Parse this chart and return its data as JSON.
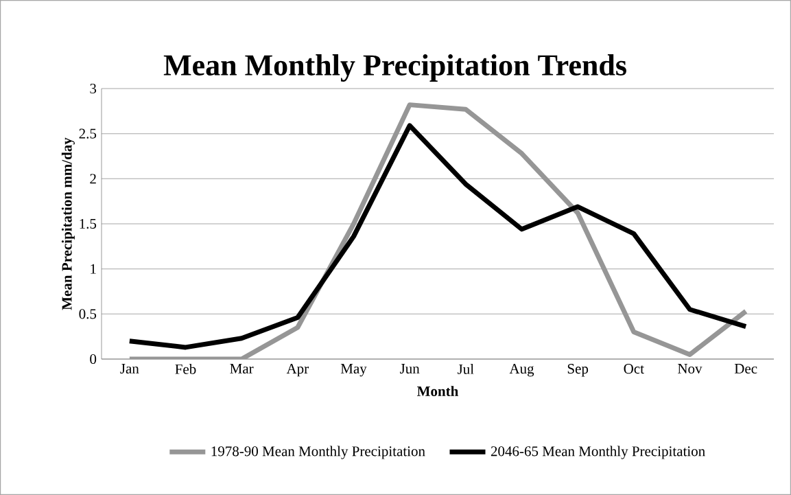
{
  "chart_data": {
    "type": "line",
    "title": "Mean Monthly Precipitation Trends",
    "xlabel": "Month",
    "ylabel": "Mean Precipitation mm/day",
    "categories": [
      "Jan",
      "Feb",
      "Mar",
      "Apr",
      "May",
      "Jun",
      "Jul",
      "Aug",
      "Sep",
      "Oct",
      "Nov",
      "Dec"
    ],
    "series": [
      {
        "name": "1978-90 Mean Monthly Precipitation",
        "color": "#969696",
        "values": [
          0,
          0,
          0,
          0.35,
          1.5,
          2.82,
          2.77,
          2.28,
          1.62,
          0.3,
          0.05,
          0.53
        ]
      },
      {
        "name": "2046-65 Mean Monthly Precipitation",
        "color": "#000000",
        "values": [
          0.2,
          0.13,
          0.23,
          0.46,
          1.36,
          2.59,
          1.94,
          1.44,
          1.69,
          1.39,
          0.55,
          0.36
        ]
      }
    ],
    "ylim": [
      0,
      3
    ],
    "yticks": [
      0,
      0.5,
      1,
      1.5,
      2,
      2.5,
      3
    ],
    "grid": "y",
    "legend": "bottom",
    "marker": "none",
    "line_style": "solid"
  }
}
